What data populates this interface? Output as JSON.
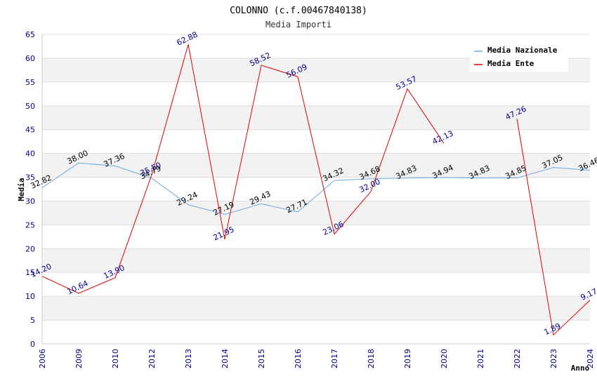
{
  "chart_data": {
    "type": "line",
    "title": "COLONNO (c.f.00467840138)",
    "subtitle": "Media Importi",
    "xlabel": "Anno",
    "ylabel": "Media",
    "ylim": [
      0,
      65
    ],
    "yticks": [
      0,
      5,
      10,
      15,
      20,
      25,
      30,
      35,
      40,
      45,
      50,
      55,
      60,
      65
    ],
    "categories": [
      "2006",
      "2009",
      "2010",
      "2012",
      "2013",
      "2014",
      "2015",
      "2016",
      "2017",
      "2018",
      "2019",
      "2020",
      "2021",
      "2022",
      "2023",
      "2024"
    ],
    "series": [
      {
        "name": "Media Nazionale",
        "color": "#6fa8dc",
        "values": [
          32.82,
          38.0,
          37.36,
          34.79,
          29.24,
          27.19,
          29.43,
          27.71,
          34.32,
          34.68,
          34.83,
          34.94,
          34.83,
          34.85,
          37.05,
          36.46
        ],
        "labels": [
          "32.82",
          "38.00",
          "37.36",
          "34.79",
          "29.24",
          "27.19",
          "29.43",
          "27.71",
          "34.32",
          "34.68",
          "34.83",
          "34.94",
          "34.83",
          "34.85",
          "37.05",
          "36.46"
        ]
      },
      {
        "name": "Media Ente",
        "color": "#e00000",
        "values": [
          14.2,
          10.64,
          13.9,
          35.5,
          62.88,
          21.95,
          58.52,
          56.09,
          23.06,
          32.0,
          53.57,
          42.13,
          null,
          47.26,
          1.89,
          9.17
        ],
        "labels": [
          "14.20",
          "10.64",
          "13.90",
          "35.50",
          "62.88",
          "21.95",
          "58.52",
          "56.09",
          "23.06",
          "32.00",
          "53.57",
          "42.13",
          "",
          "47.26",
          "1.89",
          "9.17"
        ]
      }
    ],
    "legend": "top-right",
    "grid": true
  }
}
